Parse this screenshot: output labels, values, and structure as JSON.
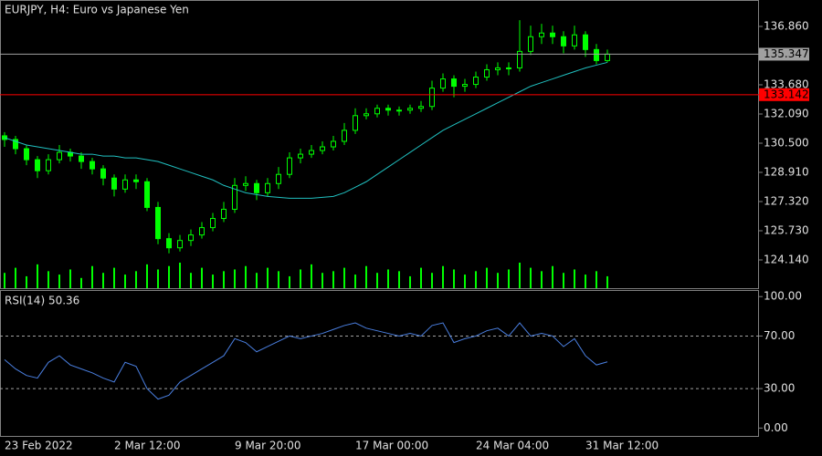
{
  "chart_data": [
    {
      "type": "candlestick",
      "title": "EURJPY, H4:  Euro vs Japanese Yen",
      "categories": [
        "23 Feb 2022",
        null,
        null,
        null,
        null,
        null,
        null,
        null,
        null,
        null,
        "2 Mar 12:00",
        null,
        null,
        null,
        null,
        null,
        null,
        null,
        null,
        null,
        null,
        "9 Mar 20:00",
        null,
        null,
        null,
        null,
        null,
        null,
        null,
        null,
        null,
        null,
        "17 Mar 00:00",
        null,
        null,
        null,
        null,
        null,
        null,
        null,
        null,
        null,
        null,
        "24 Mar 04:00",
        null,
        null,
        null,
        null,
        null,
        null,
        null,
        null,
        null,
        "31 Mar 12:00",
        null,
        null
      ],
      "open": [
        130.9,
        130.7,
        130.2,
        129.6,
        129.0,
        129.6,
        130.0,
        129.8,
        129.5,
        129.1,
        128.6,
        128.0,
        128.5,
        128.4,
        127.0,
        125.3,
        124.8,
        125.2,
        125.5,
        125.9,
        126.4,
        126.9,
        128.2,
        128.3,
        127.8,
        128.3,
        128.8,
        129.7,
        129.9,
        130.1,
        130.3,
        130.6,
        131.2,
        132.0,
        132.1,
        132.4,
        132.3,
        132.3,
        132.4,
        132.5,
        133.5,
        134.0,
        133.6,
        133.7,
        134.1,
        134.5,
        134.6,
        134.6,
        135.5,
        136.3,
        136.5,
        136.3,
        135.8,
        136.4,
        135.6,
        135.0
      ],
      "high": [
        131.1,
        130.9,
        130.4,
        129.8,
        129.9,
        130.4,
        130.2,
        130.0,
        129.7,
        129.3,
        128.8,
        128.8,
        128.8,
        128.6,
        127.3,
        125.6,
        125.5,
        125.8,
        126.2,
        126.7,
        127.3,
        128.6,
        128.7,
        128.5,
        128.6,
        129.2,
        130.0,
        130.2,
        130.4,
        130.6,
        130.9,
        131.6,
        132.4,
        132.4,
        132.6,
        132.6,
        132.5,
        132.6,
        132.8,
        133.9,
        134.3,
        134.2,
        134.0,
        134.4,
        134.8,
        134.9,
        134.9,
        137.2,
        136.9,
        137.0,
        136.9,
        136.6,
        136.9,
        136.6,
        135.9,
        135.6
      ],
      "low": [
        130.3,
        129.9,
        129.3,
        128.6,
        128.8,
        129.4,
        129.5,
        129.1,
        128.8,
        128.2,
        127.6,
        127.8,
        128.0,
        126.8,
        125.0,
        124.5,
        124.6,
        124.9,
        125.3,
        125.7,
        126.2,
        126.7,
        127.9,
        127.4,
        127.6,
        128.0,
        128.6,
        129.4,
        129.7,
        129.9,
        130.1,
        130.4,
        131.0,
        131.8,
        131.9,
        132.0,
        132.0,
        132.1,
        132.2,
        132.3,
        133.3,
        133.0,
        133.3,
        133.5,
        133.9,
        134.2,
        134.2,
        134.4,
        135.3,
        135.9,
        135.9,
        135.4,
        135.6,
        135.2,
        134.8,
        134.9
      ],
      "close": [
        130.7,
        130.2,
        129.6,
        129.0,
        129.6,
        130.0,
        129.8,
        129.5,
        129.1,
        128.6,
        128.0,
        128.5,
        128.4,
        127.0,
        125.3,
        124.8,
        125.2,
        125.5,
        125.9,
        126.4,
        126.9,
        128.2,
        128.3,
        127.8,
        128.3,
        128.8,
        129.7,
        129.9,
        130.1,
        130.3,
        130.6,
        131.2,
        132.0,
        132.1,
        132.4,
        132.3,
        132.3,
        132.4,
        132.5,
        133.5,
        134.0,
        133.6,
        133.7,
        134.1,
        134.5,
        134.6,
        134.6,
        135.5,
        136.3,
        136.5,
        136.3,
        135.8,
        136.4,
        135.6,
        135.0,
        135.35
      ],
      "color": "#00ff00",
      "moving_average": {
        "color": "#20c0c0",
        "values": [
          130.8,
          130.6,
          130.4,
          130.3,
          130.2,
          130.1,
          130.0,
          129.9,
          129.9,
          129.8,
          129.8,
          129.7,
          129.7,
          129.6,
          129.5,
          129.3,
          129.1,
          128.9,
          128.7,
          128.5,
          128.2,
          128.0,
          127.8,
          127.7,
          127.6,
          127.55,
          127.5,
          127.5,
          127.5,
          127.55,
          127.6,
          127.8,
          128.1,
          128.4,
          128.8,
          129.2,
          129.6,
          130.0,
          130.4,
          130.8,
          131.2,
          131.5,
          131.8,
          132.1,
          132.4,
          132.7,
          133.0,
          133.3,
          133.6,
          133.8,
          134.0,
          134.2,
          134.4,
          134.6,
          134.75,
          134.9
        ]
      },
      "volume": {
        "color": "#00ff00",
        "values": [
          9,
          12,
          7,
          14,
          10,
          8,
          11,
          6,
          13,
          9,
          12,
          8,
          10,
          14,
          11,
          13,
          15,
          9,
          12,
          8,
          10,
          11,
          13,
          9,
          12,
          10,
          7,
          11,
          14,
          9,
          10,
          12,
          8,
          13,
          9,
          11,
          10,
          7,
          12,
          9,
          13,
          11,
          8,
          10,
          12,
          9,
          11,
          15,
          12,
          10,
          13,
          9,
          11,
          8,
          10,
          7
        ]
      },
      "ylim": [
        122.6,
        138.25
      ],
      "yticks": [
        {
          "value": 124.14,
          "label": "124.140"
        },
        {
          "value": 125.73,
          "label": "125.730"
        },
        {
          "value": 127.32,
          "label": "127.320"
        },
        {
          "value": 128.91,
          "label": "128.910"
        },
        {
          "value": 130.5,
          "label": "130.500"
        },
        {
          "value": 132.09,
          "label": "132.090"
        },
        {
          "value": 133.68,
          "label": "133.680"
        },
        {
          "value": 136.86,
          "label": "136.860"
        }
      ],
      "price_lines": [
        {
          "value": 135.347,
          "color": "#a0a0a0"
        },
        {
          "value": 133.142,
          "color": "#ff0000"
        }
      ]
    },
    {
      "type": "line",
      "title": "RSI(14) 50.36",
      "color": "#4a7fe0",
      "values": [
        52,
        45,
        40,
        38,
        50,
        55,
        48,
        45,
        42,
        38,
        35,
        50,
        47,
        30,
        22,
        25,
        35,
        40,
        45,
        50,
        55,
        68,
        65,
        58,
        62,
        66,
        70,
        68,
        70,
        72,
        75,
        78,
        80,
        76,
        74,
        72,
        70,
        72,
        70,
        78,
        80,
        65,
        68,
        70,
        74,
        76,
        70,
        80,
        70,
        72,
        70,
        62,
        68,
        55,
        48,
        50.36
      ],
      "ylim": [
        -6,
        105
      ],
      "yticks": [
        {
          "value": 0,
          "label": "0.00"
        },
        {
          "value": 30,
          "label": "30.00"
        },
        {
          "value": 70,
          "label": "70.00"
        },
        {
          "value": 100,
          "label": "100.00"
        }
      ],
      "dashed_levels": [
        30,
        70
      ]
    }
  ]
}
